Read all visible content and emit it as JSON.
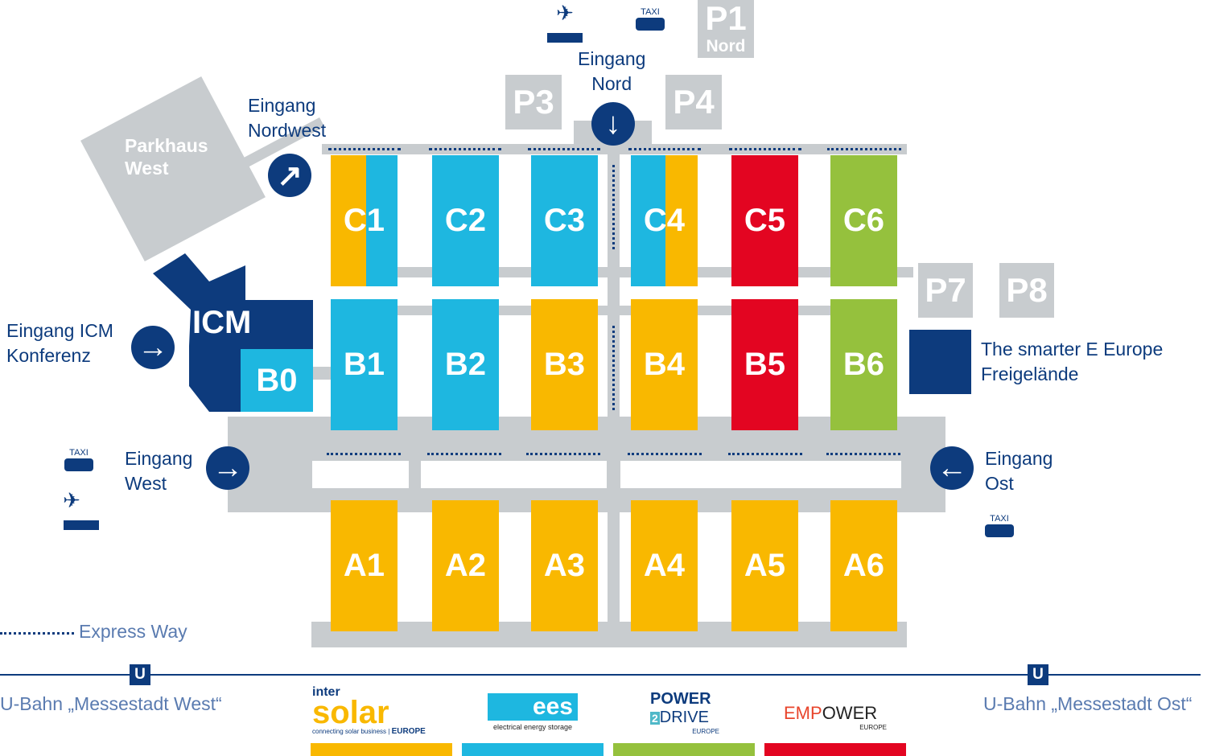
{
  "colors": {
    "yellow": "#f9b800",
    "cyan": "#1eb7e0",
    "red": "#e30521",
    "green": "#95c13d",
    "navy": "#0d3b7d",
    "gray": "#c8cccf"
  },
  "halls": {
    "c": [
      "C1",
      "C2",
      "C3",
      "C4",
      "C5",
      "C6"
    ],
    "b": [
      "B1",
      "B2",
      "B3",
      "B4",
      "B5",
      "B6"
    ],
    "a": [
      "A1",
      "A2",
      "A3",
      "A4",
      "A5",
      "A6"
    ],
    "b0": "B0",
    "icm": "ICM"
  },
  "parking": {
    "p1": "P1",
    "p1_sub": "Nord",
    "p3": "P3",
    "p4": "P4",
    "p7": "P7",
    "p8": "P8",
    "parkhaus": "Parkhaus",
    "parkhaus2": "West"
  },
  "entrances": {
    "nord": [
      "Eingang",
      "Nord"
    ],
    "nordwest": [
      "Eingang",
      "Nordwest"
    ],
    "icm": [
      "Eingang ICM",
      "Konferenz"
    ],
    "west": [
      "Eingang",
      "West"
    ],
    "ost": [
      "Eingang",
      "Ost"
    ]
  },
  "freigelaende": [
    "The smarter E Europe",
    "Freigelände"
  ],
  "taxi": "TAXI",
  "legend": {
    "express_way": "Express Way"
  },
  "ubahn": {
    "u": "U",
    "west": "U-Bahn „Messestadt West“",
    "ost": "U-Bahn „Messestadt Ost“"
  },
  "logos": {
    "intersolar": {
      "top": "inter",
      "main": "solar",
      "tag": "connecting solar business",
      "region": "EUROPE"
    },
    "ees": {
      "main": "ees",
      "tag": "electrical energy storage"
    },
    "power2drive": {
      "top": "POWER",
      "num": "2",
      "main": "DRIVE",
      "region": "EUROPE"
    },
    "empower": {
      "a": "EMP",
      "b": "OWER",
      "region": "EUROPE"
    }
  }
}
